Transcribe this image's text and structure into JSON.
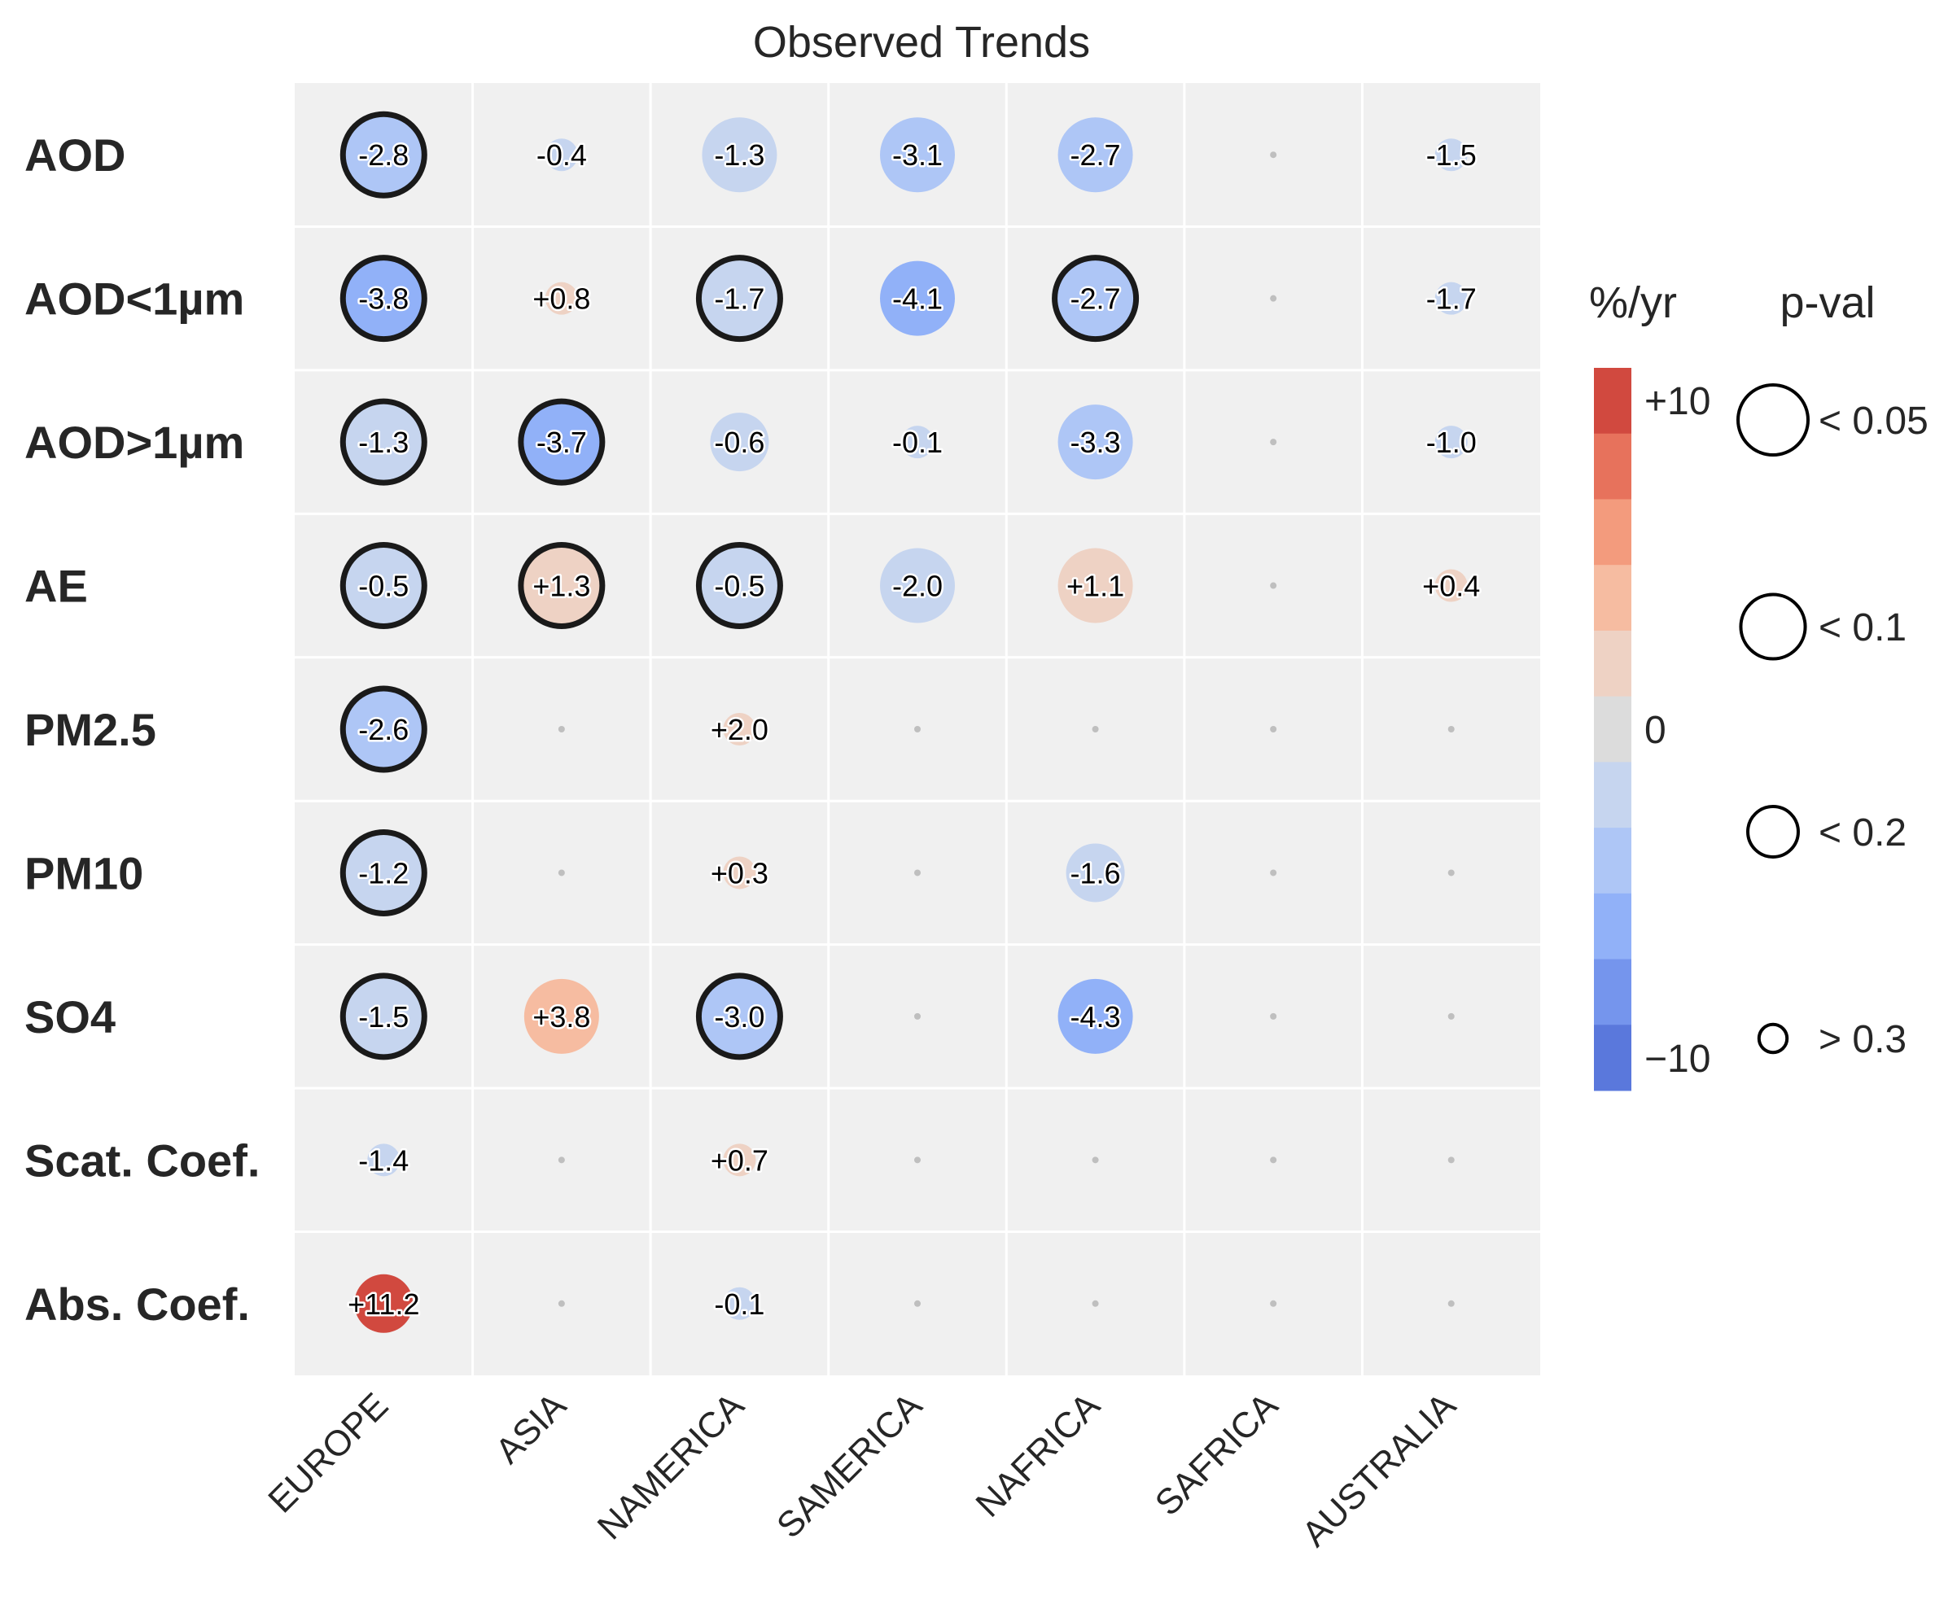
{
  "chart_data": {
    "type": "heatmap",
    "title": "Observed Trends",
    "rows": [
      "AOD",
      "AOD<1µm",
      "AOD>1µm",
      "AE",
      "PM2.5",
      "PM10",
      "SO4",
      "Scat. Coef.",
      "Abs. Coef."
    ],
    "columns": [
      "EUROPE",
      "ASIA",
      "NAMERICA",
      "SAMERICA",
      "NAFRICA",
      "SAFRICA",
      "AUSTRALIA"
    ],
    "cells": [
      [
        {
          "value": -2.8,
          "label": "-2.8",
          "pval": "< 0.05"
        },
        {
          "value": -0.4,
          "label": "-0.4",
          "pval": "> 0.3"
        },
        {
          "value": -1.3,
          "label": "-1.3",
          "pval": "< 0.1"
        },
        {
          "value": -3.1,
          "label": "-3.1",
          "pval": "< 0.1"
        },
        {
          "value": -2.7,
          "label": "-2.7",
          "pval": "< 0.1"
        },
        null,
        {
          "value": -1.5,
          "label": "-1.5",
          "pval": "> 0.3"
        }
      ],
      [
        {
          "value": -3.8,
          "label": "-3.8",
          "pval": "< 0.05"
        },
        {
          "value": 0.8,
          "label": "+0.8",
          "pval": "> 0.3"
        },
        {
          "value": -1.7,
          "label": "-1.7",
          "pval": "< 0.05"
        },
        {
          "value": -4.1,
          "label": "-4.1",
          "pval": "< 0.1"
        },
        {
          "value": -2.7,
          "label": "-2.7",
          "pval": "< 0.05"
        },
        null,
        {
          "value": -1.7,
          "label": "-1.7",
          "pval": "> 0.3"
        }
      ],
      [
        {
          "value": -1.3,
          "label": "-1.3",
          "pval": "< 0.05"
        },
        {
          "value": -3.7,
          "label": "-3.7",
          "pval": "< 0.05"
        },
        {
          "value": -0.6,
          "label": "-0.6",
          "pval": "< 0.2"
        },
        {
          "value": -0.1,
          "label": "-0.1",
          "pval": "> 0.3"
        },
        {
          "value": -3.3,
          "label": "-3.3",
          "pval": "< 0.1"
        },
        null,
        {
          "value": -1.0,
          "label": "-1.0",
          "pval": "> 0.3"
        }
      ],
      [
        {
          "value": -0.5,
          "label": "-0.5",
          "pval": "< 0.05"
        },
        {
          "value": 1.3,
          "label": "+1.3",
          "pval": "< 0.05"
        },
        {
          "value": -0.5,
          "label": "-0.5",
          "pval": "< 0.05"
        },
        {
          "value": -2.0,
          "label": "-2.0",
          "pval": "< 0.1"
        },
        {
          "value": 1.1,
          "label": "+1.1",
          "pval": "< 0.1"
        },
        null,
        {
          "value": 0.4,
          "label": "+0.4",
          "pval": "> 0.3"
        }
      ],
      [
        {
          "value": -2.6,
          "label": "-2.6",
          "pval": "< 0.05"
        },
        null,
        {
          "value": 2.0,
          "label": "+2.0",
          "pval": "> 0.3"
        },
        null,
        null,
        null,
        null
      ],
      [
        {
          "value": -1.2,
          "label": "-1.2",
          "pval": "< 0.05"
        },
        null,
        {
          "value": 0.3,
          "label": "+0.3",
          "pval": "> 0.3"
        },
        null,
        {
          "value": -1.6,
          "label": "-1.6",
          "pval": "< 0.2"
        },
        null,
        null
      ],
      [
        {
          "value": -1.5,
          "label": "-1.5",
          "pval": "< 0.05"
        },
        {
          "value": 3.8,
          "label": "+3.8",
          "pval": "< 0.1"
        },
        {
          "value": -3.0,
          "label": "-3.0",
          "pval": "< 0.05"
        },
        null,
        {
          "value": -4.3,
          "label": "-4.3",
          "pval": "< 0.1"
        },
        null,
        null
      ],
      [
        {
          "value": -1.4,
          "label": "-1.4",
          "pval": "> 0.3"
        },
        null,
        {
          "value": 0.7,
          "label": "+0.7",
          "pval": "> 0.3"
        },
        null,
        null,
        null,
        null
      ],
      [
        {
          "value": 11.2,
          "label": "+11.2",
          "pval": "< 0.2"
        },
        null,
        {
          "value": -0.1,
          "label": "-0.1",
          "pval": "> 0.3"
        },
        null,
        null,
        null,
        null
      ]
    ],
    "colorbar": {
      "title": "%/yr",
      "range": [
        -10,
        10
      ],
      "ticks": [
        {
          "value": 10,
          "label": "+10"
        },
        {
          "value": 0,
          "label": "0"
        },
        {
          "value": -10,
          "label": "−10"
        }
      ],
      "colors": [
        "#d1493f",
        "#e7725c",
        "#f39b7d",
        "#f6bca1",
        "#eed2c4",
        "#dcdcdc",
        "#c6d5ef",
        "#aec6f6",
        "#91b1f8",
        "#7595ed",
        "#5a78dc"
      ]
    },
    "size_legend": {
      "title": "p-val",
      "items": [
        {
          "label": "< 0.05",
          "sig": 0.05
        },
        {
          "label": "< 0.1",
          "sig": 0.1
        },
        {
          "label": "< 0.2",
          "sig": 0.2
        },
        {
          "label": "> 0.3",
          "sig": 0.3
        }
      ]
    },
    "cell_background": "#f0f0f0",
    "empty_dot_color": "#bfbfbf",
    "significant_outline": "#1a1a1a"
  }
}
